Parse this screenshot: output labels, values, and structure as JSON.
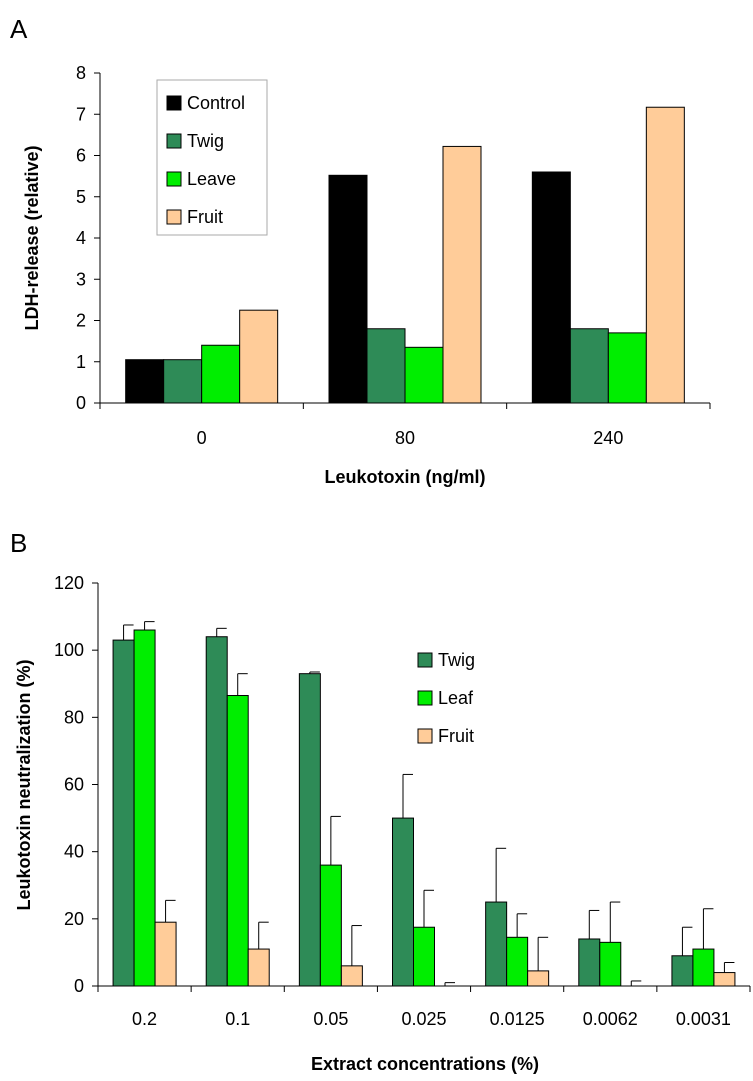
{
  "colors": {
    "Control": "#000000",
    "Twig": "#2e8b57",
    "Leave": "#00ee00",
    "Leaf": "#00ee00",
    "Fruit": "#ffcc99"
  },
  "chart_data": [
    {
      "panel": "A",
      "type": "bar",
      "categories": [
        "0",
        "80",
        "240"
      ],
      "series": [
        {
          "name": "Control",
          "values": [
            1.05,
            5.52,
            5.6
          ]
        },
        {
          "name": "Twig",
          "values": [
            1.05,
            1.8,
            1.8
          ]
        },
        {
          "name": "Leave",
          "values": [
            1.4,
            1.35,
            1.7
          ]
        },
        {
          "name": "Fruit",
          "values": [
            2.25,
            6.22,
            7.17
          ]
        }
      ],
      "xlabel": "Leukotoxin (ng/ml)",
      "ylabel": "LDH-release (relative)",
      "ylim": [
        0,
        8
      ],
      "yticks": [
        "0",
        "1",
        "2",
        "3",
        "4",
        "5",
        "6",
        "7",
        "8"
      ],
      "legend": [
        "Control",
        "Twig",
        "Leave",
        "Fruit"
      ],
      "legend_position": "top-left",
      "grid": false
    },
    {
      "panel": "B",
      "type": "bar",
      "categories": [
        "0.2",
        "0.1",
        "0.05",
        "0.025",
        "0.0125",
        "0.0062",
        "0.0031"
      ],
      "series": [
        {
          "name": "Twig",
          "values": [
            103,
            104,
            93,
            50,
            25,
            14,
            9
          ],
          "errors": [
            4.5,
            2.5,
            0.5,
            13,
            16,
            8.5,
            8.5
          ]
        },
        {
          "name": "Leaf",
          "values": [
            106,
            86.5,
            36,
            17.5,
            14.5,
            13,
            11
          ],
          "errors": [
            2.5,
            6.5,
            14.5,
            11,
            7,
            12,
            12
          ]
        },
        {
          "name": "Fruit",
          "values": [
            19,
            11,
            6,
            0,
            4.5,
            0,
            4
          ],
          "errors": [
            6.5,
            8,
            12,
            1,
            10,
            1.5,
            3
          ]
        }
      ],
      "xlabel": "Extract concentrations (%)",
      "ylabel": "Leukotoxin neutralization (%)",
      "ylim": [
        0,
        120
      ],
      "yticks": [
        "0",
        "20",
        "40",
        "60",
        "80",
        "100",
        "120"
      ],
      "legend": [
        "Twig",
        "Leaf",
        "Fruit"
      ],
      "legend_position": "top-right",
      "grid": false
    }
  ]
}
